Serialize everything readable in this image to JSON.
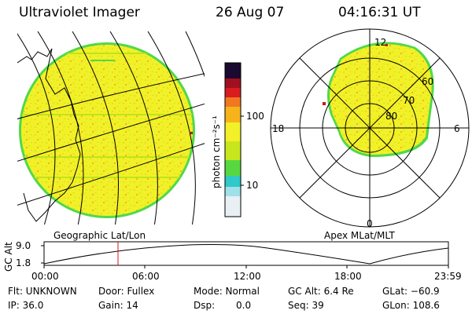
{
  "header": {
    "title": "Ultraviolet Imager",
    "date": "26 Aug 07",
    "time": "04:16:31 UT"
  },
  "colorbar": {
    "label": "photon cm⁻²s⁻¹",
    "ticks": [
      "100",
      "10"
    ]
  },
  "geo_panel": {
    "caption": "Geographic Lat/Lon"
  },
  "polar_panel": {
    "caption": "Apex MLat/MLT",
    "mlt_labels": {
      "top": "12",
      "left": "18",
      "right": "6",
      "bottom": "0"
    },
    "lat_labels": [
      "60",
      "70",
      "80"
    ]
  },
  "altitude_plot": {
    "ylabel": "GC Alt",
    "yticks": [
      "9.0",
      "1.8"
    ],
    "xticks": [
      "00:00",
      "06:00",
      "12:00",
      "18:00",
      "23:59"
    ],
    "marker_hour": 4.27
  },
  "status": {
    "flt": "Flt: UNKNOWN",
    "door": "Door: Fullex",
    "mode": "Mode: Normal",
    "gc_alt": "GC Alt: 6.4 Re",
    "glat": "GLat: −60.9",
    "ip": "IP: 36.0",
    "gain": "Gain: 14",
    "dsp_label": "Dsp:",
    "dsp_value": "0.0",
    "seq": "Seq: 39",
    "glon": "GLon: 108.6"
  },
  "colors": {
    "fill": "#f2f028",
    "rim": "#4fd94a",
    "marker": "#d0141c"
  }
}
